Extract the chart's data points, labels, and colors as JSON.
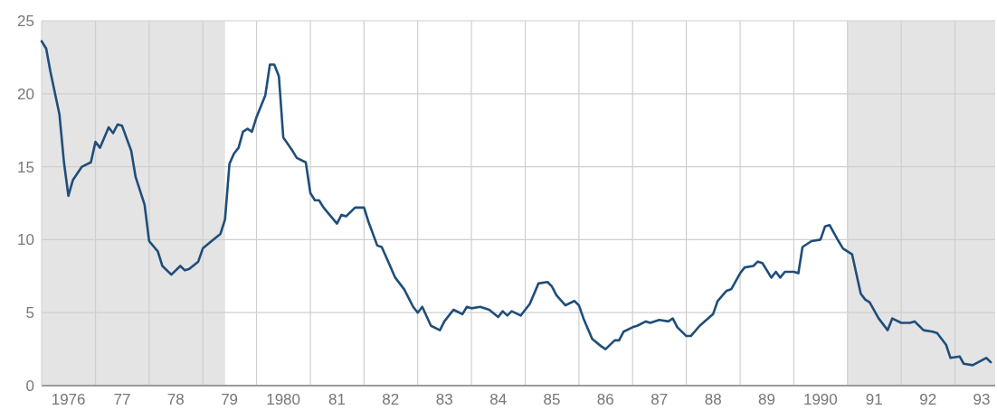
{
  "chart_data": {
    "type": "line",
    "xlim": [
      "1976-01",
      "1993-10"
    ],
    "ylim": [
      0,
      25
    ],
    "yticks": [
      0,
      5,
      10,
      15,
      20,
      25
    ],
    "grid": true,
    "xticks": [
      {
        "value": "1976-07",
        "label": "1976"
      },
      {
        "value": "1977-07",
        "label": "77"
      },
      {
        "value": "1978-07",
        "label": "78"
      },
      {
        "value": "1979-07",
        "label": "79"
      },
      {
        "value": "1980-07",
        "label": "1980"
      },
      {
        "value": "1981-07",
        "label": "81"
      },
      {
        "value": "1982-07",
        "label": "82"
      },
      {
        "value": "1983-07",
        "label": "83"
      },
      {
        "value": "1984-07",
        "label": "84"
      },
      {
        "value": "1985-07",
        "label": "85"
      },
      {
        "value": "1986-07",
        "label": "86"
      },
      {
        "value": "1987-07",
        "label": "87"
      },
      {
        "value": "1988-07",
        "label": "88"
      },
      {
        "value": "1989-07",
        "label": "89"
      },
      {
        "value": "1990-07",
        "label": "1990"
      },
      {
        "value": "1991-07",
        "label": "91"
      },
      {
        "value": "1992-07",
        "label": "92"
      },
      {
        "value": "1993-07",
        "label": "93"
      },
      {
        "value": "1977",
        "label": null
      },
      {
        "value": "1978",
        "label": null
      },
      {
        "value": "1979",
        "label": null
      },
      {
        "value": "1980",
        "label": null
      },
      {
        "value": "1981",
        "label": null
      },
      {
        "value": "1982",
        "label": null
      },
      {
        "value": "1983",
        "label": null
      },
      {
        "value": "1984",
        "label": null
      },
      {
        "value": "1985",
        "label": null
      },
      {
        "value": "1986",
        "label": null
      },
      {
        "value": "1987",
        "label": null
      },
      {
        "value": "1988",
        "label": null
      },
      {
        "value": "1989",
        "label": null
      },
      {
        "value": "1990",
        "label": null
      },
      {
        "value": "1991",
        "label": null
      },
      {
        "value": "1992",
        "label": null
      },
      {
        "value": "1993",
        "label": null
      }
    ],
    "bands": [
      {
        "axis": "x",
        "from": "1976-01",
        "to": "1979-06",
        "color": "#e4e4e4"
      },
      {
        "axis": "x",
        "from": "1991-01",
        "to": "1993-10",
        "color": "#e4e4e4"
      }
    ],
    "series": [
      {
        "color": "#1f4e79",
        "x": [
          "1976-01",
          "1976-02",
          "1976-03",
          "1976-05",
          "1976-06",
          "1976-07",
          "1976-08",
          "1976-10",
          "1976-12",
          "1977-01",
          "1977-02",
          "1977-04",
          "1977-05",
          "1977-06",
          "1977-07",
          "1977-09",
          "1977-10",
          "1977-12",
          "1978-01",
          "1978-03",
          "1978-04",
          "1978-06",
          "1978-08",
          "1978-09",
          "1978-10",
          "1978-12",
          "1979-01",
          "1979-03",
          "1979-05",
          "1979-06",
          "1979-07",
          "1979-08",
          "1979-09",
          "1979-10",
          "1979-11",
          "1979-12",
          "1980-01",
          "1980-03",
          "1980-04",
          "1980-05",
          "1980-06",
          "1980-07",
          "1980-09",
          "1980-10",
          "1980-12",
          "1981-01",
          "1981-02",
          "1981-03",
          "1981-04",
          "1981-07",
          "1981-08",
          "1981-09",
          "1981-11",
          "1982-01",
          "1982-02",
          "1982-04",
          "1982-05",
          "1982-06",
          "1982-08",
          "1982-10",
          "1982-12",
          "1983-01",
          "1983-02",
          "1983-04",
          "1983-06",
          "1983-07",
          "1983-09",
          "1983-11",
          "1983-12",
          "1984-01",
          "1984-03",
          "1984-05",
          "1984-07",
          "1984-08",
          "1984-09",
          "1984-10",
          "1984-12",
          "1985-02",
          "1985-04",
          "1985-06",
          "1985-07",
          "1985-08",
          "1985-10",
          "1985-12",
          "1986-01",
          "1986-02",
          "1986-04",
          "1986-06",
          "1986-07",
          "1986-09",
          "1986-10",
          "1986-11",
          "1987-01",
          "1987-02",
          "1987-04",
          "1987-05",
          "1987-07",
          "1987-09",
          "1987-10",
          "1987-11",
          "1988-01",
          "1988-02",
          "1988-04",
          "1988-07",
          "1988-08",
          "1988-10",
          "1988-11",
          "1989-01",
          "1989-02",
          "1989-04",
          "1989-05",
          "1989-06",
          "1989-08",
          "1989-09",
          "1989-10",
          "1989-11",
          "1990-01",
          "1990-02",
          "1990-03",
          "1990-05",
          "1990-07",
          "1990-08",
          "1990-09",
          "1990-11",
          "1990-12",
          "1991-02",
          "1991-04",
          "1991-05",
          "1991-06",
          "1991-08",
          "1991-10",
          "1991-11",
          "1992-01",
          "1992-03",
          "1992-04",
          "1992-06",
          "1992-08",
          "1992-09",
          "1992-11",
          "1992-12",
          "1993-02",
          "1993-03",
          "1993-05",
          "1993-08",
          "1993-09"
        ],
        "values": [
          23.6,
          23.1,
          21.5,
          18.6,
          15.3,
          13.0,
          14.1,
          15.0,
          15.3,
          16.7,
          16.3,
          17.7,
          17.3,
          17.9,
          17.8,
          16.1,
          14.3,
          12.4,
          9.9,
          9.2,
          8.2,
          7.6,
          8.2,
          7.9,
          8.0,
          8.5,
          9.4,
          9.9,
          10.4,
          11.4,
          15.2,
          15.9,
          16.3,
          17.4,
          17.6,
          17.4,
          18.4,
          19.9,
          22.0,
          22.0,
          21.2,
          17.0,
          16.1,
          15.6,
          15.3,
          13.2,
          12.7,
          12.7,
          12.2,
          11.1,
          11.7,
          11.6,
          12.2,
          12.2,
          11.2,
          9.6,
          9.5,
          8.8,
          7.4,
          6.6,
          5.4,
          5.0,
          5.4,
          4.1,
          3.8,
          4.4,
          5.2,
          4.9,
          5.4,
          5.3,
          5.4,
          5.2,
          4.7,
          5.1,
          4.8,
          5.1,
          4.8,
          5.6,
          7.0,
          7.1,
          6.8,
          6.2,
          5.5,
          5.8,
          5.5,
          4.6,
          3.2,
          2.7,
          2.5,
          3.1,
          3.1,
          3.7,
          4.0,
          4.1,
          4.4,
          4.3,
          4.5,
          4.4,
          4.6,
          4.0,
          3.4,
          3.4,
          4.1,
          4.9,
          5.8,
          6.5,
          6.6,
          7.7,
          8.1,
          8.2,
          8.5,
          8.4,
          7.4,
          7.8,
          7.4,
          7.8,
          7.8,
          7.7,
          9.5,
          9.9,
          10.0,
          10.9,
          11.0,
          9.9,
          9.4,
          9.0,
          6.3,
          5.9,
          5.7,
          4.6,
          3.8,
          4.6,
          4.3,
          4.3,
          4.4,
          3.8,
          3.7,
          3.6,
          2.8,
          1.9,
          2.0,
          1.5,
          1.4,
          1.9,
          1.6
        ]
      }
    ]
  }
}
